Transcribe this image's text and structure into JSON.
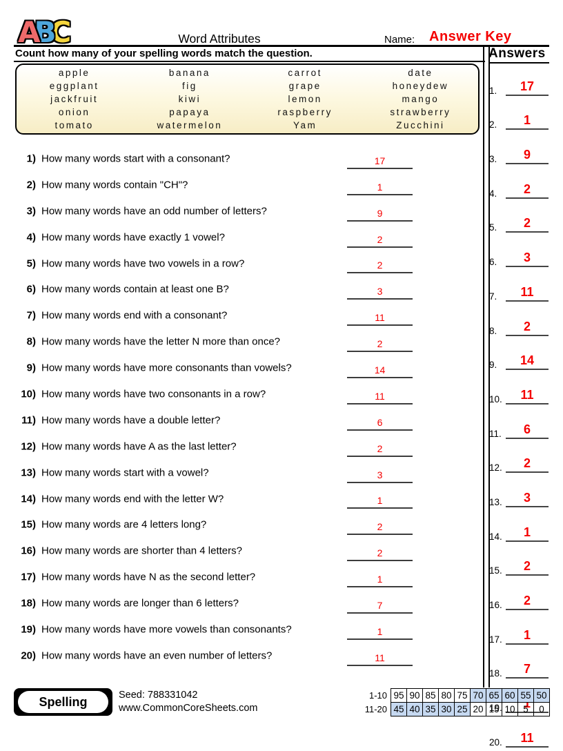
{
  "colors": {
    "red": "#f40000",
    "cream": "#f7edc5",
    "blue_cell": "#c6d9f1",
    "logo_a": "#ef6a6a",
    "logo_b": "#4da6db",
    "logo_c": "#f5d63d"
  },
  "header": {
    "logo": {
      "a": "A",
      "b": "B",
      "c": "C"
    },
    "title": "Word Attributes",
    "name_label": "Name:",
    "name_value": "Answer Key"
  },
  "instruction": "Count how many of your spelling words match the question.",
  "word_bank": {
    "rows": [
      [
        "apple",
        "banana",
        "carrot",
        "date"
      ],
      [
        "eggplant",
        "fig",
        "grape",
        "honeydew"
      ],
      [
        "jackfruit",
        "kiwi",
        "lemon",
        "mango"
      ],
      [
        "onion",
        "papaya",
        "raspberry",
        "strawberry"
      ],
      [
        "tomato",
        "watermelon",
        "Yam",
        "Zucchini"
      ]
    ]
  },
  "questions": [
    {
      "num": "1)",
      "text": "How many words start with a consonant?",
      "answer": "17"
    },
    {
      "num": "2)",
      "text": "How many words contain \"CH\"?",
      "answer": "1"
    },
    {
      "num": "3)",
      "text": "How many words have an odd number of letters?",
      "answer": "9"
    },
    {
      "num": "4)",
      "text": "How many words have exactly 1 vowel?",
      "answer": "2"
    },
    {
      "num": "5)",
      "text": "How many words have two vowels in a row?",
      "answer": "2"
    },
    {
      "num": "6)",
      "text": "How many words contain at least one B?",
      "answer": "3"
    },
    {
      "num": "7)",
      "text": "How many words end with a consonant?",
      "answer": "11"
    },
    {
      "num": "8)",
      "text": "How many words have the letter N more than once?",
      "answer": "2"
    },
    {
      "num": "9)",
      "text": "How many words have more consonants than vowels?",
      "answer": "14"
    },
    {
      "num": "10)",
      "text": "How many words have two consonants in a row?",
      "answer": "11"
    },
    {
      "num": "11)",
      "text": "How many words have a double letter?",
      "answer": "6"
    },
    {
      "num": "12)",
      "text": "How many words have A as the last letter?",
      "answer": "2"
    },
    {
      "num": "13)",
      "text": "How many words start with a vowel?",
      "answer": "3"
    },
    {
      "num": "14)",
      "text": "How many words end with the letter W?",
      "answer": "1"
    },
    {
      "num": "15)",
      "text": "How many words are 4 letters long?",
      "answer": "2"
    },
    {
      "num": "16)",
      "text": "How many words are shorter than 4 letters?",
      "answer": "2"
    },
    {
      "num": "17)",
      "text": "How many words have N as the second letter?",
      "answer": "1"
    },
    {
      "num": "18)",
      "text": "How many words are longer than 6 letters?",
      "answer": "7"
    },
    {
      "num": "19)",
      "text": "How many words have more vowels than consonants?",
      "answer": "1"
    },
    {
      "num": "20)",
      "text": "How many words have an even number of letters?",
      "answer": "11"
    }
  ],
  "answers_panel": {
    "title": "Answers",
    "items": [
      {
        "num": "1.",
        "value": "17"
      },
      {
        "num": "2.",
        "value": "1"
      },
      {
        "num": "3.",
        "value": "9"
      },
      {
        "num": "4.",
        "value": "2"
      },
      {
        "num": "5.",
        "value": "2"
      },
      {
        "num": "6.",
        "value": "3"
      },
      {
        "num": "7.",
        "value": "11"
      },
      {
        "num": "8.",
        "value": "2"
      },
      {
        "num": "9.",
        "value": "14"
      },
      {
        "num": "10.",
        "value": "11"
      },
      {
        "num": "11.",
        "value": "6"
      },
      {
        "num": "12.",
        "value": "2"
      },
      {
        "num": "13.",
        "value": "3"
      },
      {
        "num": "14.",
        "value": "1"
      },
      {
        "num": "15.",
        "value": "2"
      },
      {
        "num": "16.",
        "value": "2"
      },
      {
        "num": "17.",
        "value": "1"
      },
      {
        "num": "18.",
        "value": "7"
      },
      {
        "num": "19.",
        "value": "1"
      },
      {
        "num": "20.",
        "value": "11"
      }
    ]
  },
  "footer": {
    "badge": "Spelling",
    "seed": "Seed: 788331042",
    "site": "www.CommonCoreSheets.com",
    "grade_table": {
      "row1_label": "1-10",
      "row1": [
        "95",
        "90",
        "85",
        "80",
        "75",
        "70",
        "65",
        "60",
        "55",
        "50"
      ],
      "row1_highlight": [
        false,
        false,
        false,
        false,
        false,
        true,
        true,
        true,
        true,
        true
      ],
      "row2_label": "11-20",
      "row2": [
        "45",
        "40",
        "35",
        "30",
        "25",
        "20",
        "15",
        "10",
        "5",
        "0"
      ],
      "row2_highlight": [
        true,
        true,
        true,
        true,
        true,
        false,
        false,
        false,
        false,
        false
      ]
    }
  }
}
